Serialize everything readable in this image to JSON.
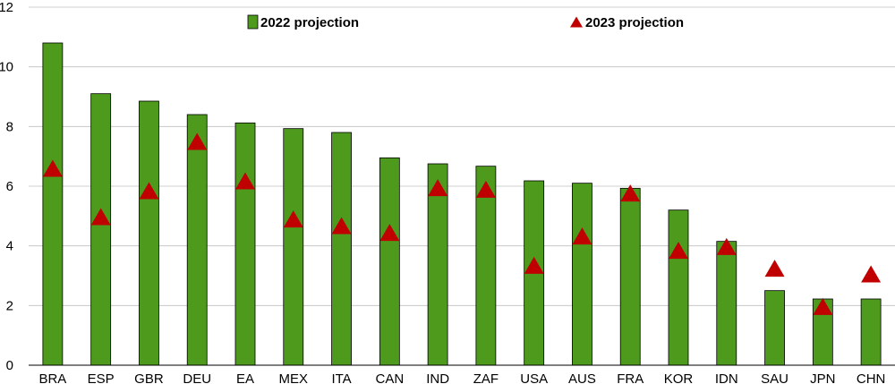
{
  "chart_data": {
    "type": "bar",
    "categories": [
      "BRA",
      "ESP",
      "GBR",
      "DEU",
      "EA",
      "MEX",
      "ITA",
      "CAN",
      "IND",
      "ZAF",
      "USA",
      "AUS",
      "FRA",
      "KOR",
      "IDN",
      "SAU",
      "JPN",
      "CHN"
    ],
    "series": [
      {
        "name": "2022 projection",
        "kind": "bar",
        "color": "#4e9a1c",
        "values": [
          10.8,
          9.1,
          8.85,
          8.4,
          8.12,
          7.93,
          7.8,
          6.95,
          6.75,
          6.67,
          6.18,
          6.1,
          5.93,
          5.2,
          4.15,
          2.5,
          2.22,
          2.22
        ]
      },
      {
        "name": "2023 projection",
        "kind": "marker",
        "marker": "triangle",
        "color": "#c00000",
        "values": [
          6.6,
          4.98,
          5.85,
          7.5,
          6.18,
          4.9,
          4.68,
          4.45,
          5.95,
          5.9,
          3.35,
          4.33,
          5.77,
          3.85,
          3.98,
          3.25,
          1.97,
          3.06
        ]
      }
    ],
    "yticks": [
      0,
      2,
      4,
      6,
      8,
      10,
      12
    ],
    "ylim": [
      0,
      12
    ],
    "grid": true,
    "legend": "top-center"
  }
}
